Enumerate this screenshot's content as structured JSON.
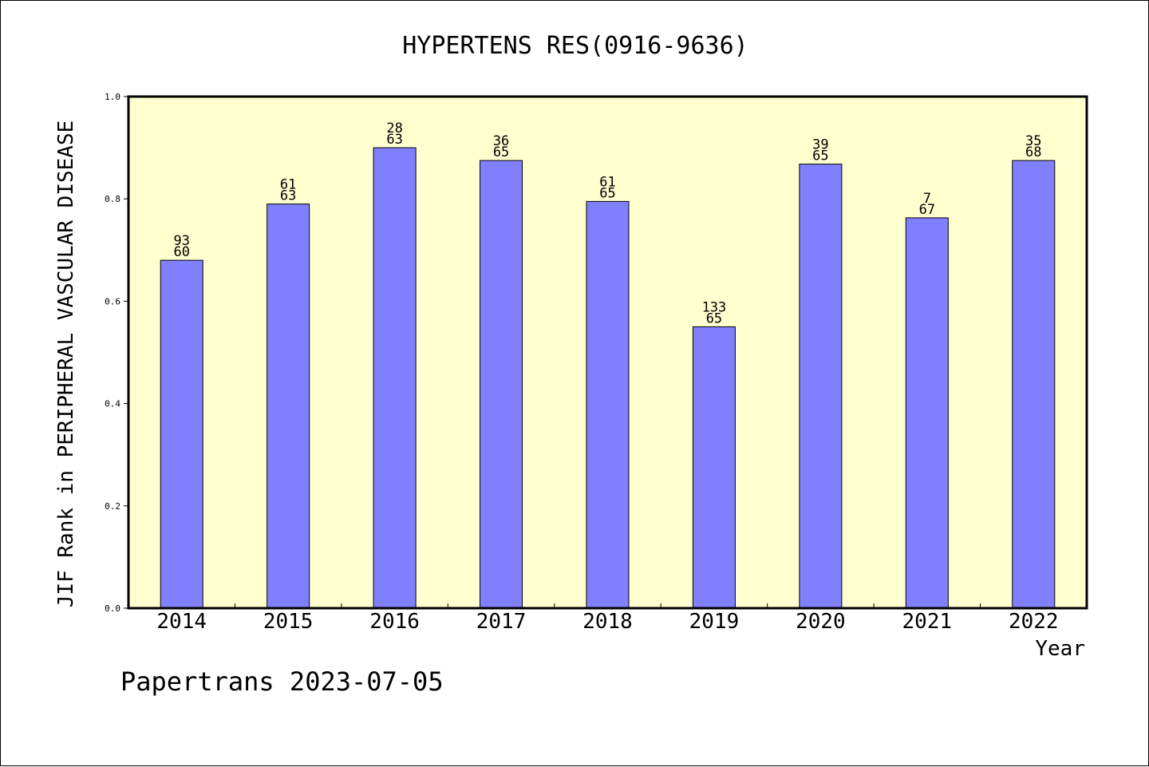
{
  "chart_data": {
    "type": "bar",
    "title": "HYPERTENS RES(0916-9636)",
    "xlabel": "Year",
    "ylabel": "JIF Rank in PERIPHERAL VASCULAR DISEASE",
    "ylim": [
      0,
      1
    ],
    "yticks": [
      "0.0",
      "0.2",
      "0.4",
      "0.6",
      "0.8",
      "1.0"
    ],
    "categories": [
      "2014",
      "2015",
      "2016",
      "2017",
      "2018",
      "2019",
      "2020",
      "2021",
      "2022"
    ],
    "values": [
      0.68,
      0.79,
      0.9,
      0.875,
      0.795,
      0.55,
      0.868,
      0.763,
      0.875
    ],
    "labels_top": [
      "93",
      "61",
      "28",
      "36",
      "61",
      "133",
      "39",
      "7",
      "35"
    ],
    "labels_bottom": [
      "60",
      "63",
      "63",
      "65",
      "65",
      "65",
      "65",
      "67",
      "68"
    ],
    "grid": false,
    "legend": "none",
    "colors": {
      "bar_fill": "#8080ff",
      "plot_background": "#ffffd0",
      "stroke": "#000000"
    }
  },
  "footer": {
    "watermark": "Papertrans 2023-07-05"
  }
}
